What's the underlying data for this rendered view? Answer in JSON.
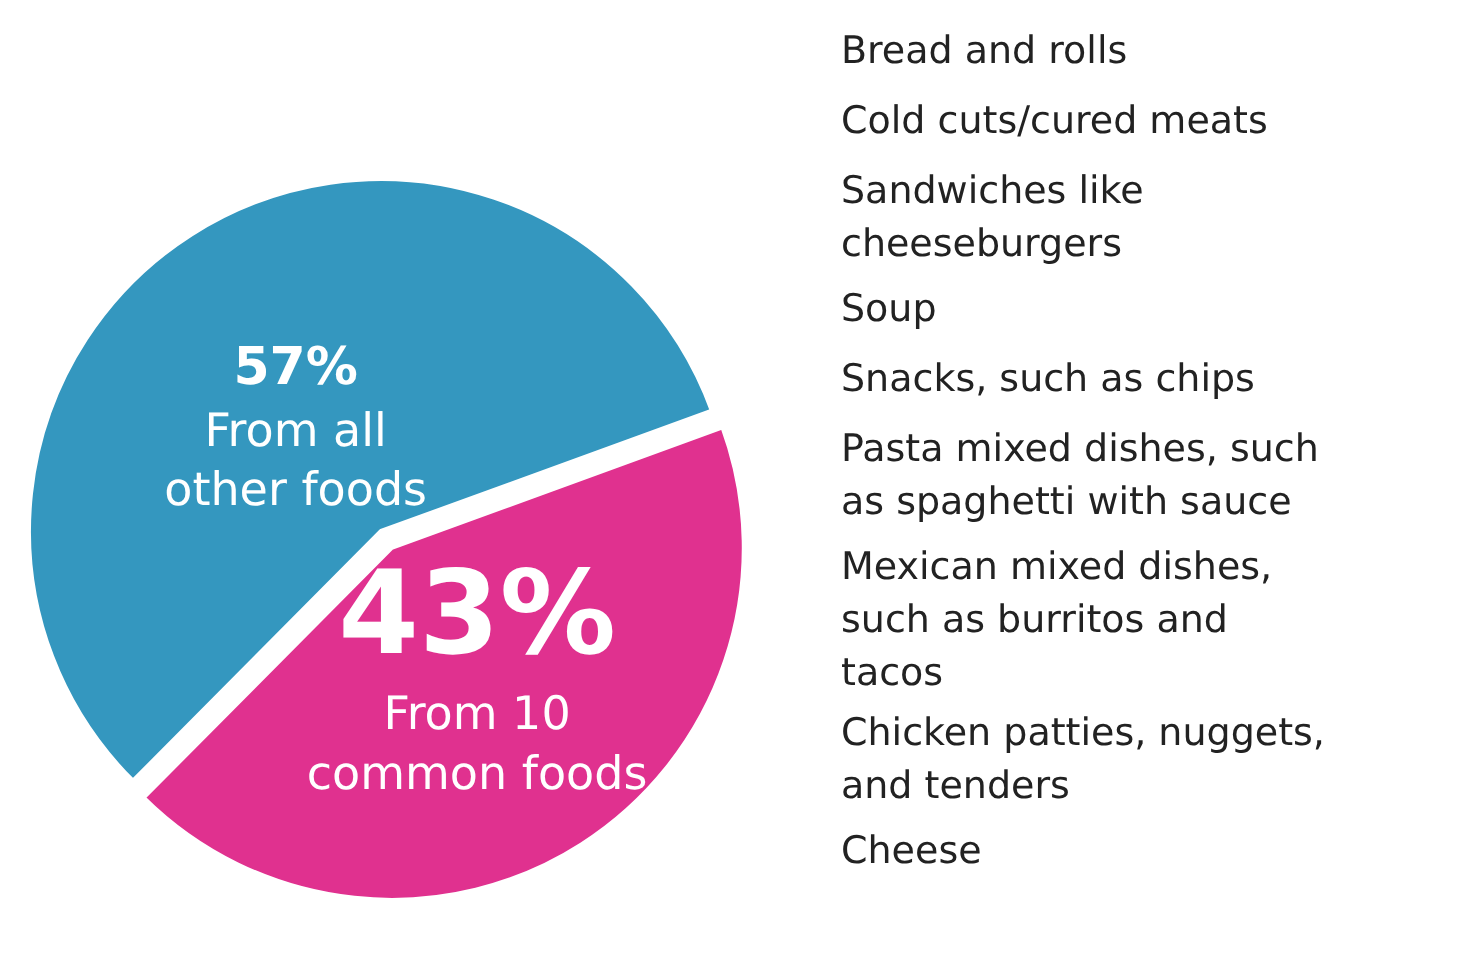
{
  "chart_data": {
    "type": "pie",
    "categories": [
      "From 10\ncommon foods",
      "From all\nother foods"
    ],
    "values": [
      43,
      57
    ],
    "colors": [
      "#e0318f",
      "#3497bf"
    ],
    "value_labels": [
      "43%",
      "57%"
    ],
    "annotations": [
      "Bread and rolls",
      "Cold cuts/cured meats",
      "Sandwiches like\ncheeseburgers",
      "Soup",
      "Snacks, such as chips",
      "Pasta mixed dishes, such\nas spaghetti with sauce",
      "Mexican mixed dishes,\nsuch as burritos and\ntacos",
      "Chicken patties, nuggets,\nand tenders",
      "Cheese"
    ]
  }
}
